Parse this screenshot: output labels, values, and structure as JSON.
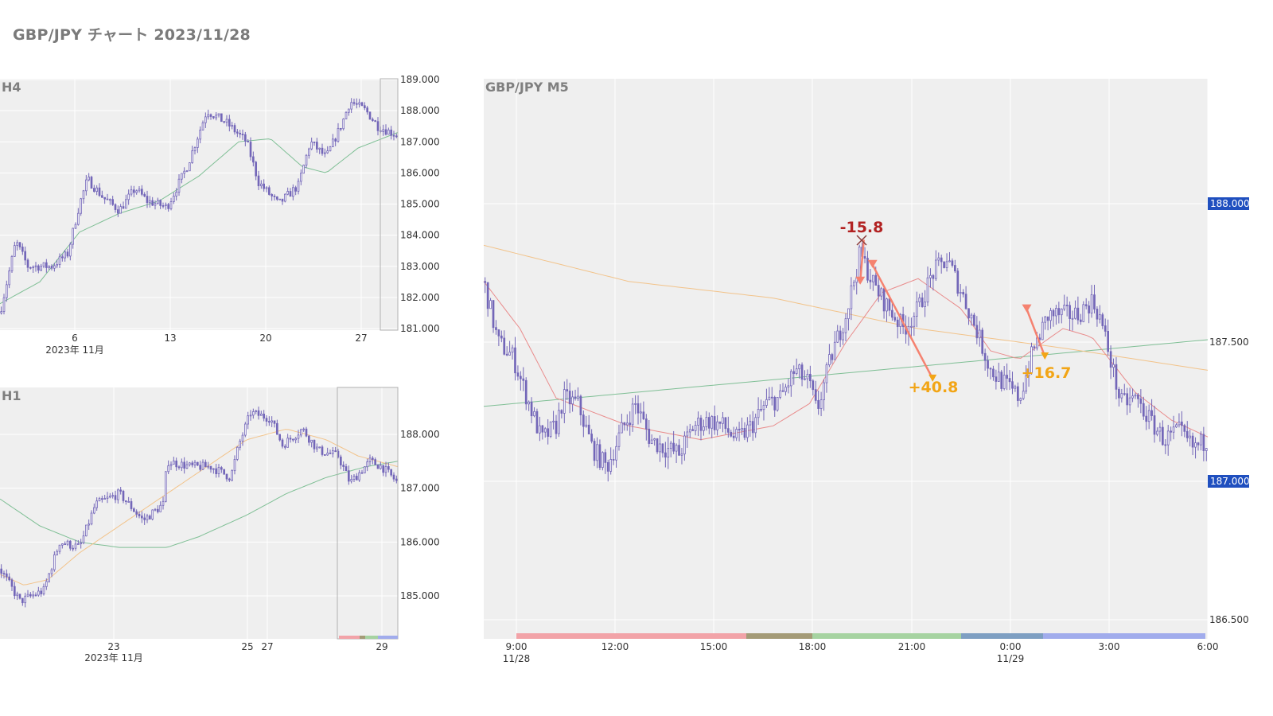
{
  "page": {
    "title": "GBP/JPY チャート 2023/11/28"
  },
  "colors": {
    "candle": "#7366b8",
    "ma_green": "#7fbf95",
    "ma_red": "#e98b8b",
    "ma_orange": "#f2c38a",
    "loss": "#b22222",
    "gain": "#f2a516",
    "trade_line": "#f58270",
    "price_box": "#1f4fbf",
    "session": [
      "#f2a3a8",
      "#a49b77",
      "#a6d3a1",
      "#7e9fc2",
      "#a1acec"
    ]
  },
  "chart_data": [
    {
      "id": "h4",
      "type": "candlestick",
      "title": "H4",
      "x_ticks": [
        "6",
        "13",
        "20",
        "27"
      ],
      "x_sublabel": "2023年 11月",
      "y_ticks": [
        "189.000",
        "188.000",
        "187.000",
        "186.000",
        "185.000",
        "184.000",
        "183.000",
        "182.000",
        "181.000"
      ],
      "ylim": [
        181.0,
        189.0
      ],
      "grid": true,
      "ohlc_path": [
        [
          0,
          181.5
        ],
        [
          0.04,
          183.8
        ],
        [
          0.07,
          183.0
        ],
        [
          0.13,
          183.0
        ],
        [
          0.17,
          183.4
        ],
        [
          0.2,
          185.0
        ],
        [
          0.22,
          185.8
        ],
        [
          0.26,
          185.2
        ],
        [
          0.3,
          184.8
        ],
        [
          0.34,
          185.5
        ],
        [
          0.37,
          185.1
        ],
        [
          0.42,
          184.9
        ],
        [
          0.47,
          186.2
        ],
        [
          0.52,
          188.0
        ],
        [
          0.57,
          187.6
        ],
        [
          0.62,
          187.0
        ],
        [
          0.65,
          185.7
        ],
        [
          0.7,
          185.0
        ],
        [
          0.75,
          185.6
        ],
        [
          0.78,
          187.0
        ],
        [
          0.82,
          186.5
        ],
        [
          0.86,
          187.6
        ],
        [
          0.88,
          188.3
        ],
        [
          0.92,
          188.0
        ],
        [
          0.95,
          187.5
        ],
        [
          1.0,
          187.2
        ]
      ],
      "ma_path": [
        [
          0,
          181.8
        ],
        [
          0.1,
          182.5
        ],
        [
          0.2,
          184.1
        ],
        [
          0.3,
          184.7
        ],
        [
          0.4,
          185.1
        ],
        [
          0.5,
          185.9
        ],
        [
          0.6,
          187.0
        ],
        [
          0.68,
          187.1
        ],
        [
          0.76,
          186.2
        ],
        [
          0.82,
          186.0
        ],
        [
          0.9,
          186.8
        ],
        [
          1.0,
          187.3
        ]
      ]
    },
    {
      "id": "h1",
      "type": "candlestick",
      "title": "H1",
      "x_ticks": [
        "23",
        "25",
        "27",
        "29"
      ],
      "x_sublabel": "2023年 11月",
      "y_ticks": [
        "188.000",
        "187.000",
        "186.000",
        "185.000"
      ],
      "ylim": [
        184.3,
        188.9
      ],
      "grid": true,
      "ohlc_path": [
        [
          0,
          185.5
        ],
        [
          0.05,
          184.9
        ],
        [
          0.11,
          185.1
        ],
        [
          0.15,
          186.0
        ],
        [
          0.2,
          185.9
        ],
        [
          0.24,
          186.7
        ],
        [
          0.3,
          186.9
        ],
        [
          0.36,
          186.4
        ],
        [
          0.41,
          186.7
        ],
        [
          0.42,
          187.5
        ],
        [
          0.48,
          187.4
        ],
        [
          0.53,
          187.4
        ],
        [
          0.58,
          187.2
        ],
        [
          0.6,
          187.8
        ],
        [
          0.63,
          188.4
        ],
        [
          0.68,
          188.3
        ],
        [
          0.71,
          187.8
        ],
        [
          0.76,
          188.1
        ],
        [
          0.8,
          187.7
        ],
        [
          0.85,
          187.6
        ],
        [
          0.88,
          187.1
        ],
        [
          0.93,
          187.5
        ],
        [
          0.96,
          187.4
        ],
        [
          1.0,
          187.1
        ]
      ],
      "ma_path": [
        [
          0,
          186.8
        ],
        [
          0.1,
          186.3
        ],
        [
          0.2,
          186.0
        ],
        [
          0.3,
          185.9
        ],
        [
          0.42,
          185.9
        ],
        [
          0.5,
          186.1
        ],
        [
          0.62,
          186.5
        ],
        [
          0.72,
          186.9
        ],
        [
          0.82,
          187.2
        ],
        [
          0.92,
          187.4
        ],
        [
          1.0,
          187.5
        ]
      ],
      "ma2_path": [
        [
          0,
          185.4
        ],
        [
          0.06,
          185.2
        ],
        [
          0.12,
          185.3
        ],
        [
          0.2,
          185.8
        ],
        [
          0.3,
          186.3
        ],
        [
          0.42,
          186.9
        ],
        [
          0.52,
          187.4
        ],
        [
          0.62,
          187.9
        ],
        [
          0.72,
          188.1
        ],
        [
          0.82,
          187.9
        ],
        [
          0.9,
          187.6
        ],
        [
          1.0,
          187.4
        ]
      ]
    },
    {
      "id": "m5",
      "type": "candlestick",
      "title": "GBP/JPY M5",
      "x_ticks": [
        "9:00",
        "12:00",
        "15:00",
        "18:00",
        "21:00",
        "0:00",
        "3:00",
        "6:00"
      ],
      "x_sublabels": [
        "11/28",
        "11/29"
      ],
      "y_ticks": [
        "188.000",
        "187.500",
        "187.000",
        "186.500"
      ],
      "ylim": [
        186.43,
        188.46
      ],
      "grid": true,
      "price_boxes": [
        "188.000",
        "187.000"
      ],
      "ohlc_path": [
        [
          0,
          187.72
        ],
        [
          0.02,
          187.5
        ],
        [
          0.04,
          187.45
        ],
        [
          0.06,
          187.3
        ],
        [
          0.08,
          187.15
        ],
        [
          0.1,
          187.2
        ],
        [
          0.11,
          187.3
        ],
        [
          0.13,
          187.28
        ],
        [
          0.15,
          187.12
        ],
        [
          0.17,
          187.05
        ],
        [
          0.19,
          187.18
        ],
        [
          0.21,
          187.28
        ],
        [
          0.23,
          187.15
        ],
        [
          0.25,
          187.12
        ],
        [
          0.27,
          187.1
        ],
        [
          0.29,
          187.2
        ],
        [
          0.31,
          187.22
        ],
        [
          0.33,
          187.2
        ],
        [
          0.35,
          187.15
        ],
        [
          0.37,
          187.2
        ],
        [
          0.39,
          187.28
        ],
        [
          0.41,
          187.3
        ],
        [
          0.43,
          187.4
        ],
        [
          0.45,
          187.35
        ],
        [
          0.46,
          187.25
        ],
        [
          0.48,
          187.45
        ],
        [
          0.5,
          187.6
        ],
        [
          0.52,
          187.82
        ],
        [
          0.54,
          187.7
        ],
        [
          0.56,
          187.62
        ],
        [
          0.58,
          187.55
        ],
        [
          0.6,
          187.62
        ],
        [
          0.62,
          187.75
        ],
        [
          0.64,
          187.8
        ],
        [
          0.66,
          187.68
        ],
        [
          0.68,
          187.55
        ],
        [
          0.7,
          187.4
        ],
        [
          0.72,
          187.35
        ],
        [
          0.74,
          187.3
        ],
        [
          0.76,
          187.48
        ],
        [
          0.78,
          187.6
        ],
        [
          0.8,
          187.6
        ],
        [
          0.82,
          187.6
        ],
        [
          0.84,
          187.65
        ],
        [
          0.85,
          187.6
        ],
        [
          0.86,
          187.5
        ],
        [
          0.88,
          187.28
        ],
        [
          0.9,
          187.3
        ],
        [
          0.92,
          187.22
        ],
        [
          0.94,
          187.15
        ],
        [
          0.96,
          187.18
        ],
        [
          0.98,
          187.12
        ],
        [
          1.0,
          187.15
        ]
      ],
      "ma_green_path": [
        [
          0,
          187.27
        ],
        [
          1.0,
          187.51
        ]
      ],
      "ma_orange_path": [
        [
          0,
          187.85
        ],
        [
          0.2,
          187.72
        ],
        [
          0.4,
          187.66
        ],
        [
          0.6,
          187.55
        ],
        [
          0.8,
          187.48
        ],
        [
          1.0,
          187.4
        ]
      ],
      "ma_red_path": [
        [
          0,
          187.72
        ],
        [
          0.05,
          187.55
        ],
        [
          0.1,
          187.3
        ],
        [
          0.2,
          187.2
        ],
        [
          0.3,
          187.15
        ],
        [
          0.4,
          187.2
        ],
        [
          0.45,
          187.28
        ],
        [
          0.5,
          187.5
        ],
        [
          0.55,
          187.68
        ],
        [
          0.6,
          187.73
        ],
        [
          0.66,
          187.62
        ],
        [
          0.7,
          187.47
        ],
        [
          0.74,
          187.44
        ],
        [
          0.8,
          187.55
        ],
        [
          0.84,
          187.52
        ],
        [
          0.9,
          187.32
        ],
        [
          0.95,
          187.22
        ],
        [
          1.0,
          187.16
        ]
      ],
      "trades": [
        {
          "label": "-15.8",
          "result": "loss",
          "entry": [
            0.52,
            187.72
          ],
          "exit": [
            0.525,
            187.87
          ]
        },
        {
          "label": "+40.8",
          "result": "gain",
          "entry": [
            0.537,
            187.78
          ],
          "exit": [
            0.62,
            187.37
          ]
        },
        {
          "label": "+16.7",
          "result": "gain",
          "entry": [
            0.75,
            187.62
          ],
          "exit": [
            0.775,
            187.45
          ]
        }
      ]
    }
  ]
}
